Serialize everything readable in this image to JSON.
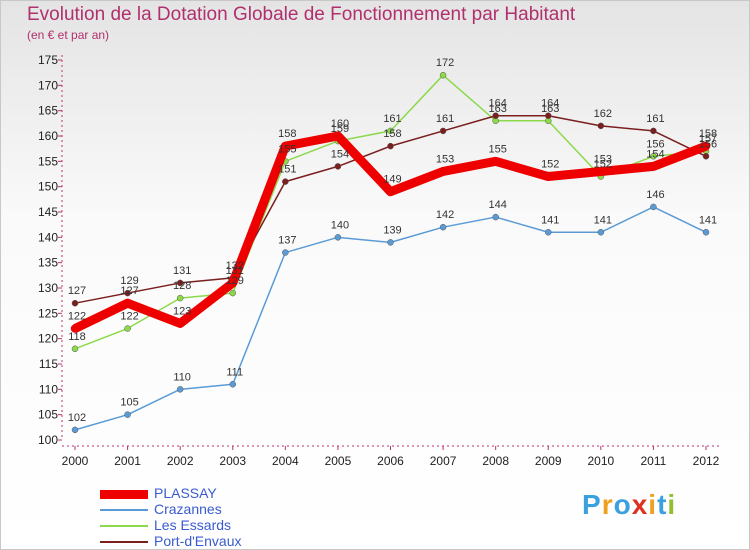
{
  "header": {
    "title": "Evolution de la Dotation Globale de Fonctionnement par Habitant",
    "subtitle": "(en € et par an)"
  },
  "chart_data": {
    "type": "line",
    "title": "Evolution de la Dotation Globale de Fonctionnement par Habitant",
    "ylabel": "(en € et par an)",
    "xlabel": "",
    "x": [
      "2000",
      "2001",
      "2002",
      "2003",
      "2004",
      "2005",
      "2006",
      "2007",
      "2008",
      "2009",
      "2010",
      "2011",
      "2012"
    ],
    "ylim": [
      100,
      175
    ],
    "yticks": [
      100,
      105,
      110,
      115,
      120,
      125,
      130,
      135,
      140,
      145,
      150,
      155,
      160,
      165,
      170,
      175
    ],
    "grid": false,
    "legend": "bottom-left",
    "series": [
      {
        "name": "Crazannes",
        "color": "#5b9bd5",
        "values": [
          102,
          105,
          110,
          111,
          137,
          140,
          139,
          142,
          144,
          141,
          141,
          146,
          141
        ]
      },
      {
        "name": "Les Essards",
        "color": "#8cd94a",
        "values": [
          118,
          122,
          128,
          129,
          155,
          159,
          161,
          172,
          163,
          163,
          152,
          156,
          157
        ]
      },
      {
        "name": "Port-d'Envaux",
        "color": "#7a1e1e",
        "values": [
          127,
          129,
          131,
          132,
          151,
          154,
          158,
          161,
          164,
          164,
          162,
          161,
          156
        ]
      },
      {
        "name": "PLASSAY",
        "color": "#ee0000",
        "values": [
          122,
          127,
          123,
          131,
          158,
          160,
          149,
          153,
          155,
          152,
          153,
          154,
          158
        ]
      }
    ]
  },
  "legend": {
    "items": [
      {
        "name": "PLASSAY",
        "color": "#ee0000"
      },
      {
        "name": "Crazannes",
        "color": "#5b9bd5"
      },
      {
        "name": "Les Essards",
        "color": "#8cd94a"
      },
      {
        "name": "Port-d'Envaux",
        "color": "#7a1e1e"
      }
    ]
  },
  "logo": {
    "letters": [
      "P",
      "r",
      "o",
      "x",
      "i",
      "t",
      "i"
    ],
    "colors": [
      "#3aa0e0",
      "#f0a020",
      "#3aa0e0",
      "#e03020",
      "#f0a020",
      "#3aa0e0",
      "#90c030"
    ]
  }
}
